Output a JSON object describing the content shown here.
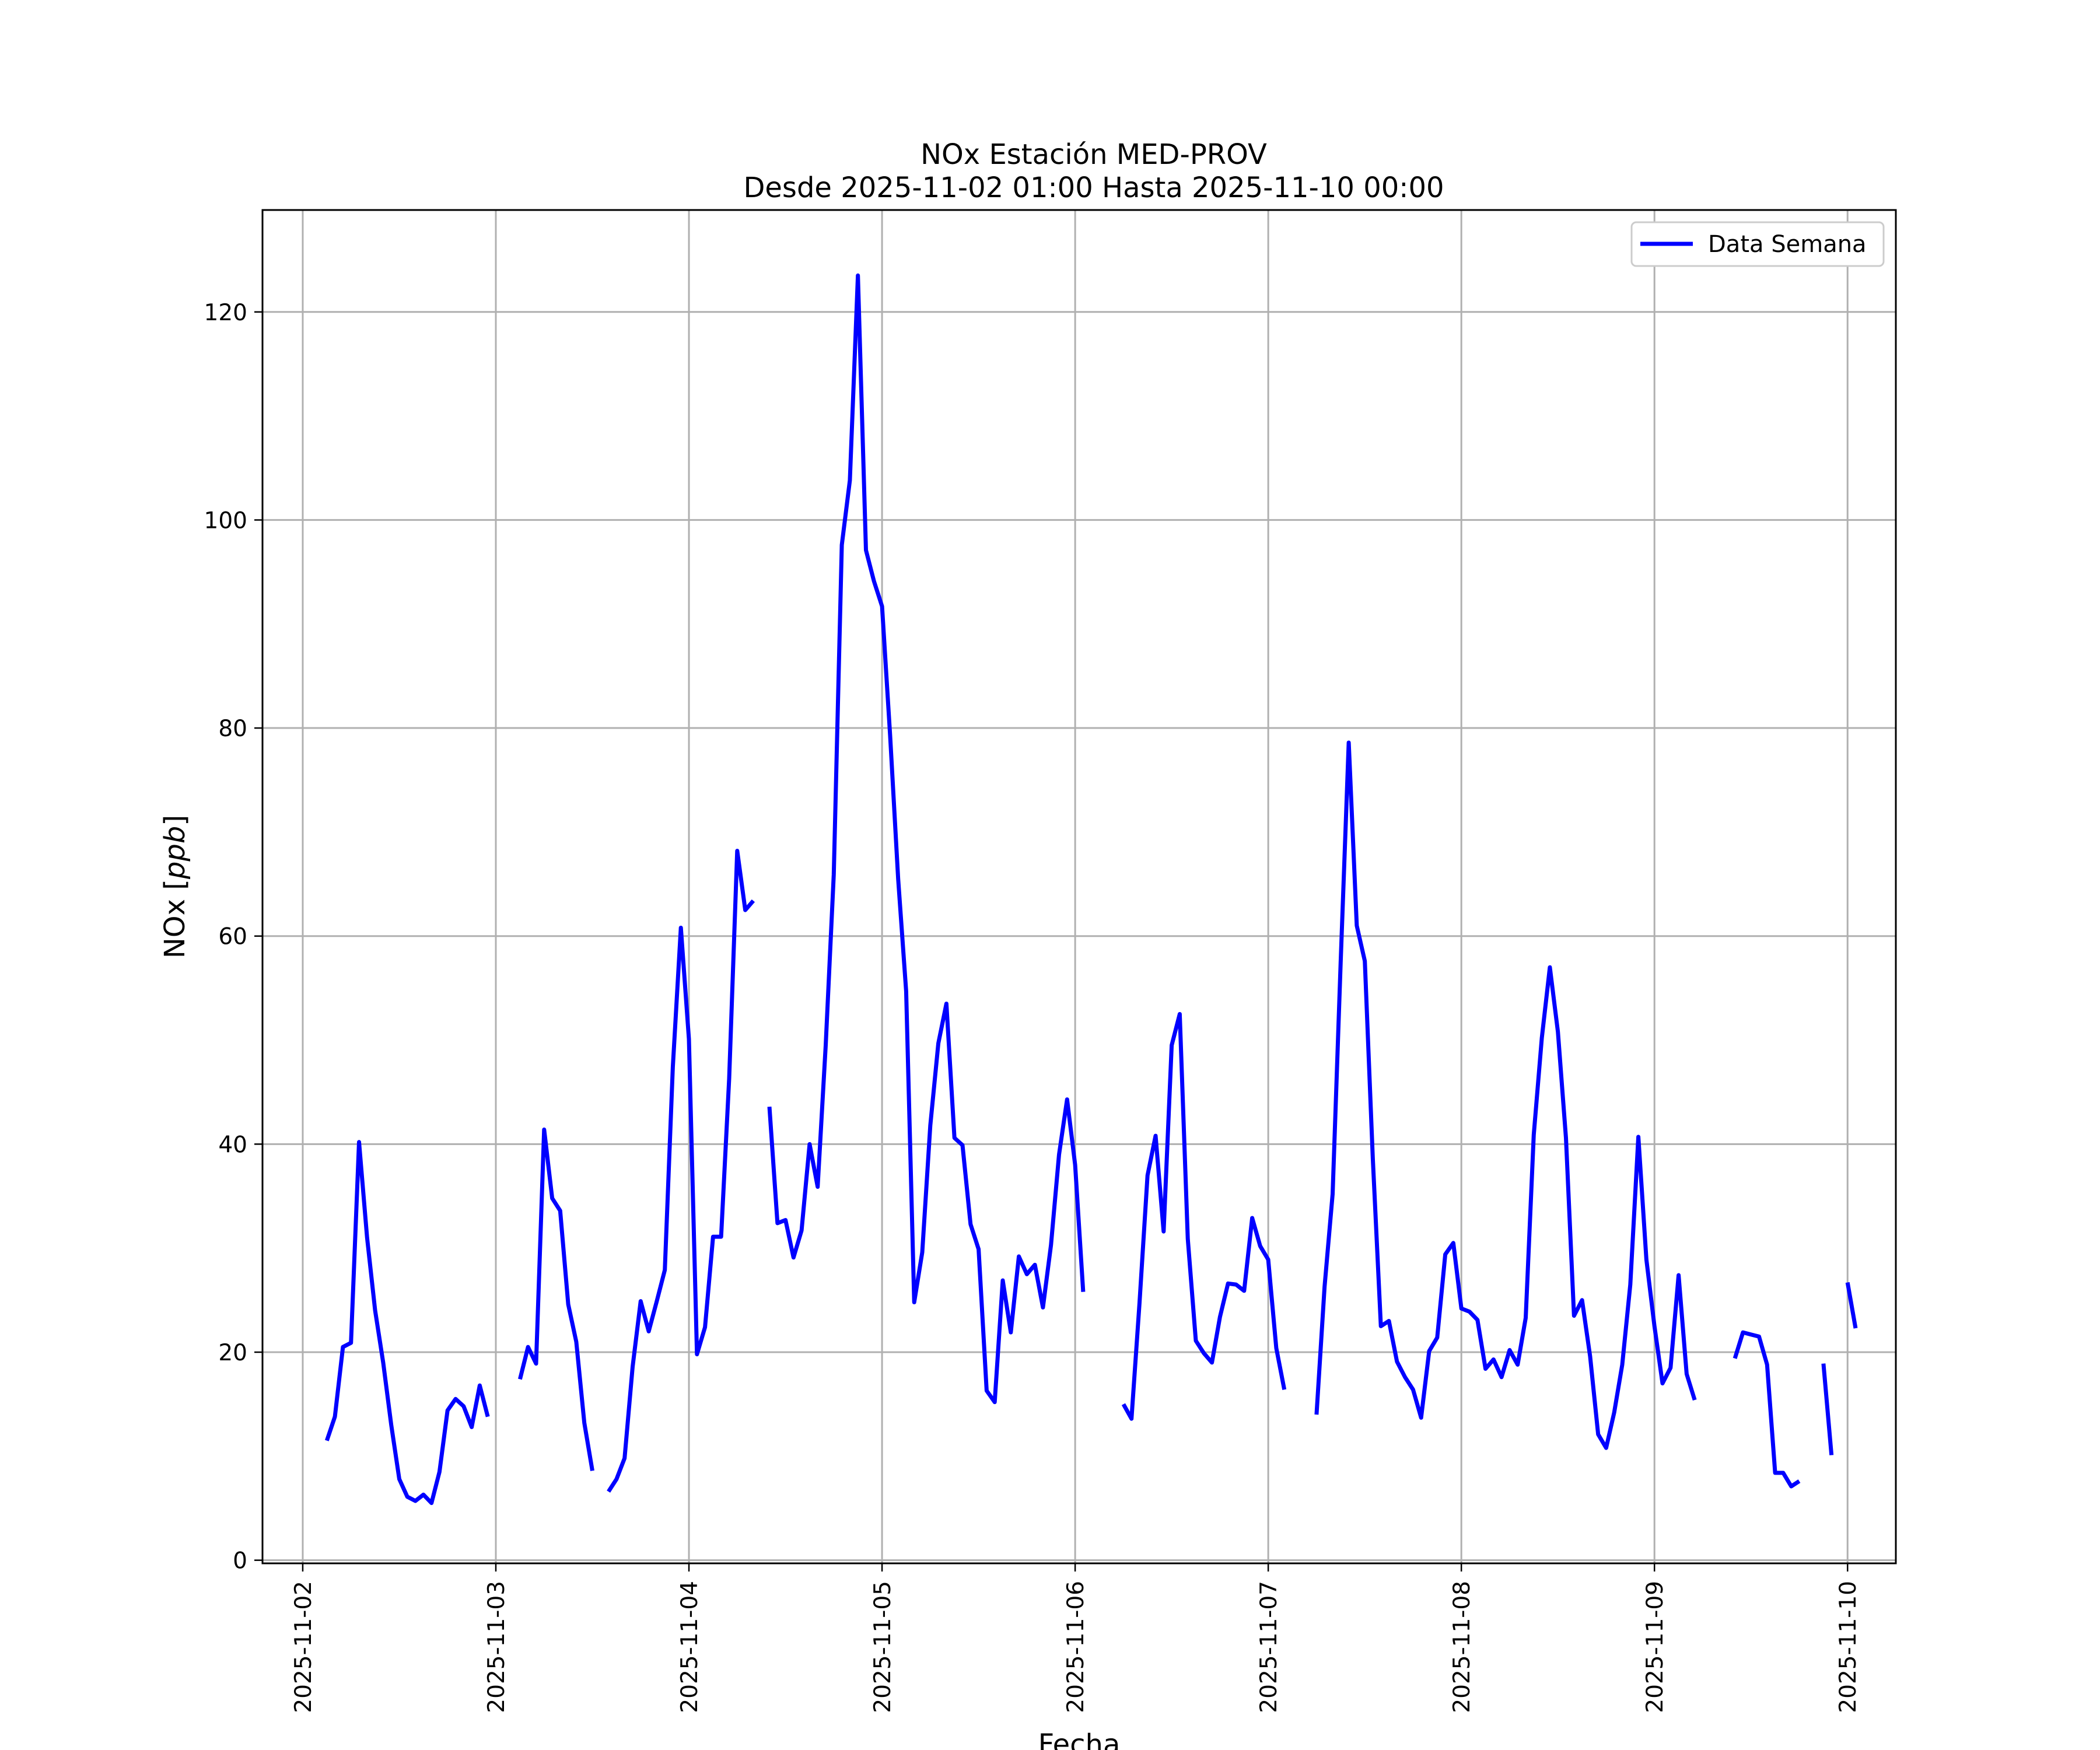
{
  "chart_data": {
    "type": "line",
    "title": "NOx Estación MED-PROV",
    "subtitle": "Desde 2025-11-02 01:00 Hasta 2025-11-10 00:00",
    "xlabel": "Fecha",
    "ylabel_text": "NOx [",
    "ylabel_unit": "ppb",
    "ylabel_close": "]",
    "xlim": [
      "2025-11-01 19:00",
      "2025-11-10 06:00"
    ],
    "ylim": [
      -0.3,
      129.8
    ],
    "x_tick_labels": [
      "2025-11-02",
      "2025-11-03",
      "2025-11-04",
      "2025-11-05",
      "2025-11-06",
      "2025-11-07",
      "2025-11-08",
      "2025-11-09",
      "2025-11-10"
    ],
    "y_tick_labels": [
      "0",
      "20",
      "40",
      "60",
      "80",
      "100",
      "120"
    ],
    "grid": true,
    "legend_position": "top-right",
    "series": [
      {
        "name": "Data Semana",
        "color": "#0000ff",
        "start": "2025-11-02 01:00",
        "step_hours": 1,
        "values": [
          null,
          null,
          11.5,
          13.8,
          20.5,
          20.9,
          40.2,
          31.0,
          24.0,
          19.0,
          13.0,
          7.8,
          6.1,
          5.7,
          6.3,
          5.5,
          8.5,
          14.4,
          15.5,
          14.8,
          12.8,
          16.8,
          13.8,
          null,
          null,
          null,
          17.4,
          20.5,
          18.9,
          41.4,
          34.8,
          33.6,
          24.6,
          21.0,
          13.2,
          8.6,
          null,
          6.6,
          7.8,
          9.8,
          18.6,
          24.9,
          22.0,
          24.9,
          27.9,
          47.4,
          60.8,
          50.1,
          19.8,
          22.4,
          31.1,
          31.1,
          46.3,
          68.2,
          62.5,
          63.4,
          null,
          43.6,
          32.4,
          32.7,
          29.1,
          31.7,
          40.0,
          35.9,
          49.5,
          65.9,
          97.6,
          103.8,
          123.5,
          97.1,
          94.1,
          91.7,
          79.3,
          65.5,
          54.7,
          24.8,
          29.6,
          41.8,
          49.7,
          53.5,
          40.6,
          39.9,
          32.3,
          29.9,
          16.3,
          15.2,
          26.9,
          21.9,
          29.2,
          27.5,
          28.4,
          24.3,
          30.3,
          39.0,
          44.3,
          38.0,
          25.8,
          null,
          null,
          null,
          null,
          15.0,
          13.6,
          24.7,
          37.0,
          40.8,
          31.6,
          49.5,
          52.5,
          30.9,
          21.1,
          19.9,
          19.0,
          23.4,
          26.6,
          26.5,
          25.9,
          32.9,
          30.2,
          28.9,
          20.4,
          16.4,
          null,
          null,
          null,
          14.0,
          26.3,
          35.2,
          57.5,
          78.6,
          61.0,
          57.6,
          38.6,
          22.5,
          23.0,
          19.1,
          17.6,
          16.4,
          13.7,
          20.1,
          21.4,
          29.4,
          30.5,
          24.2,
          23.9,
          23.1,
          18.4,
          19.3,
          17.6,
          20.2,
          18.8,
          23.3,
          40.9,
          50.2,
          57.0,
          50.8,
          40.6,
          23.5,
          25.0,
          19.6,
          12.1,
          10.8,
          14.2,
          18.8,
          26.5,
          40.7,
          28.9,
          22.5,
          17.0,
          18.5,
          27.4,
          17.9,
          15.4,
          null,
          null,
          null,
          null,
          19.4,
          21.9,
          21.7,
          21.5,
          18.8,
          8.4,
          8.4,
          7.1,
          7.6,
          null,
          null,
          18.9,
          10.1,
          null,
          26.7,
          22.3
        ]
      }
    ]
  }
}
